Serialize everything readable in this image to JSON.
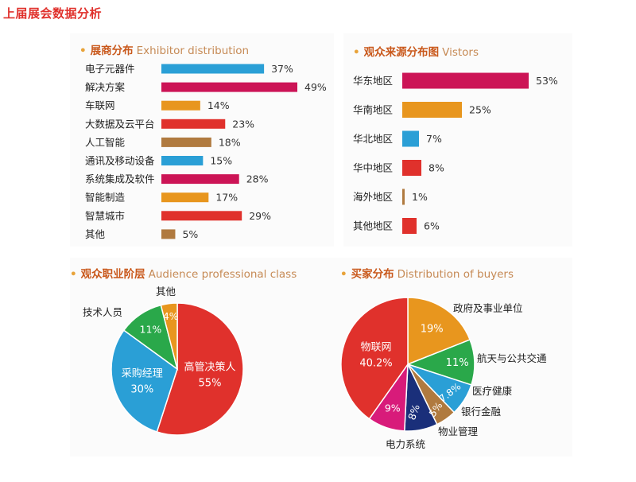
{
  "page": {
    "title": "上届展会数据分析"
  },
  "colors": {
    "title": "#e0312c",
    "heading_zh": "#c9581b",
    "heading_en": "#c68a55",
    "dot": "#e8a33a"
  },
  "chart_data": [
    {
      "type": "bar",
      "orientation": "horizontal",
      "title_zh": "展商分布",
      "title_en": "Exhibitor distribution",
      "categories": [
        "电子元器件",
        "解决方案",
        "车联网",
        "大数据及云平台",
        "人工智能",
        "通讯及移动设备",
        "系统集成及软件",
        "智能制造",
        "智慧城市",
        "其他"
      ],
      "values": [
        37,
        49,
        14,
        23,
        18,
        15,
        28,
        17,
        29,
        5
      ],
      "labels": [
        "37%",
        "49%",
        "14%",
        "23%",
        "18%",
        "15%",
        "28%",
        "17%",
        "29%",
        "5%"
      ],
      "colors": [
        "#2a9fd6",
        "#cc1456",
        "#e8961e",
        "#e0312c",
        "#b07a3f",
        "#2a9fd6",
        "#cc1456",
        "#e8961e",
        "#e0312c",
        "#b07a3f"
      ],
      "xlim": [
        0,
        100
      ]
    },
    {
      "type": "bar",
      "orientation": "horizontal",
      "title_zh": "观众来源分布图",
      "title_en": "Vistors",
      "categories": [
        "华东地区",
        "华南地区",
        "华北地区",
        "华中地区",
        "海外地区",
        "其他地区"
      ],
      "values": [
        53,
        25,
        7,
        8,
        1,
        6
      ],
      "labels": [
        "53%",
        "25%",
        "7%",
        "8%",
        "1%",
        "6%"
      ],
      "colors": [
        "#cc1456",
        "#e8961e",
        "#2a9fd6",
        "#e0312c",
        "#b07a3f",
        "#e0312c"
      ],
      "xlim": [
        0,
        100
      ]
    },
    {
      "type": "pie",
      "title_zh": "观众职业阶层",
      "title_en": "Audience professional class",
      "slices": [
        {
          "label": "高管决策人",
          "value": 55,
          "value_label": "55%",
          "color": "#e0312c"
        },
        {
          "label": "采购经理",
          "value": 30,
          "value_label": "30%",
          "color": "#2a9fd6"
        },
        {
          "label": "技术人员",
          "value": 11,
          "value_label": "11%",
          "color": "#2aa84a"
        },
        {
          "label": "其他",
          "value": 4,
          "value_label": "4%",
          "color": "#e8961e"
        }
      ]
    },
    {
      "type": "pie",
      "title_zh": "买家分布",
      "title_en": "Distribution of buyers",
      "slices": [
        {
          "label": "政府及事业单位",
          "value": 19,
          "value_label": "19%",
          "color": "#e8961e"
        },
        {
          "label": "航天与公共交通",
          "value": 11,
          "value_label": "11%",
          "color": "#2aa84a"
        },
        {
          "label": "医疗健康",
          "value": 7.8,
          "value_label": "7.8%",
          "color": "#2a9fd6"
        },
        {
          "label": "银行金融",
          "value": 5,
          "value_label": "5%",
          "color": "#b07a3f"
        },
        {
          "label": "物业管理",
          "value": 8,
          "value_label": "8%",
          "color": "#1a2f7a"
        },
        {
          "label": "电力系统",
          "value": 9,
          "value_label": "9%",
          "color": "#d81b7a"
        },
        {
          "label": "物联网",
          "value": 40.2,
          "value_label": "40.2%",
          "color": "#e0312c"
        }
      ]
    }
  ]
}
